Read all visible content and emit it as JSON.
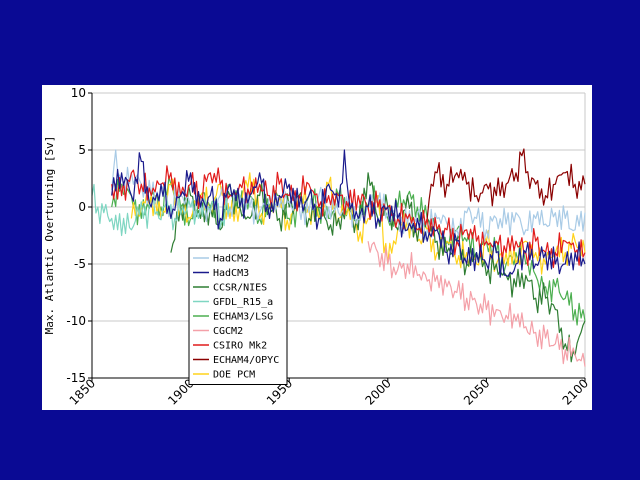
{
  "chart_data": {
    "type": "line",
    "ylabel": "Max. Atlantic Overturning [Sv]",
    "xlim": [
      1850,
      2100
    ],
    "ylim": [
      -15,
      10
    ],
    "x_ticks": [
      "1850",
      "1900",
      "1950",
      "2000",
      "2050",
      "2100"
    ],
    "y_ticks": [
      "10",
      "5",
      "0",
      "-5",
      "-10",
      "-15"
    ],
    "grid": true,
    "legend_position": "bottom-left",
    "series": [
      {
        "name": "HadCM2",
        "color": "#a9cbe6",
        "x": [
          1860,
          1862,
          1865,
          1870,
          1875,
          1880,
          1885,
          1890,
          1895,
          1900,
          1905,
          1910,
          1915,
          1920,
          1925,
          1930,
          1935,
          1940,
          1945,
          1950,
          1955,
          1960,
          1965,
          1970,
          1975,
          1980,
          1985,
          1990,
          1995,
          2000,
          2005,
          2010,
          2015,
          2020,
          2025,
          2030,
          2035,
          2040,
          2045,
          2050,
          2055,
          2060,
          2065,
          2070,
          2075,
          2080,
          2085,
          2090,
          2095,
          2100
        ],
        "values": [
          1.5,
          5,
          1,
          3,
          2,
          1,
          1.5,
          0,
          1,
          0,
          0.5,
          -0.5,
          1,
          0,
          1,
          0,
          -0.5,
          1,
          0,
          0.5,
          0,
          -0.5,
          1,
          0,
          -0.5,
          0,
          -1,
          0,
          0.5,
          -0.5,
          -1,
          -1.5,
          -0.5,
          -2,
          -1,
          -1.5,
          -2,
          -0.5,
          -1,
          -2,
          -1,
          -1.5,
          -0.5,
          -2,
          -1,
          -1.5,
          -0.5,
          -1,
          -2,
          -0.5
        ]
      },
      {
        "name": "HadCM3",
        "color": "#1a1a8c",
        "x": [
          1860,
          1865,
          1870,
          1875,
          1880,
          1885,
          1890,
          1895,
          1900,
          1905,
          1910,
          1915,
          1920,
          1925,
          1930,
          1935,
          1940,
          1945,
          1950,
          1955,
          1960,
          1965,
          1970,
          1975,
          1978,
          1980,
          1985,
          1990,
          1995,
          2000,
          2005,
          2010,
          2015,
          2020,
          2025,
          2030,
          2035,
          2040,
          2045,
          2050,
          2055,
          2060,
          2065,
          2070,
          2075,
          2080,
          2085,
          2090,
          2095,
          2100
        ],
        "values": [
          1,
          3,
          1,
          4,
          0,
          2,
          -1,
          1,
          3,
          0,
          1,
          -1,
          2,
          0,
          1,
          3,
          -1,
          1,
          2,
          0,
          1,
          -1,
          2,
          0,
          5,
          1,
          -1,
          0,
          -1,
          0,
          -1,
          -2,
          -1,
          -3,
          -2,
          -4,
          -3,
          -5,
          -4,
          -5,
          -4,
          -6,
          -5,
          -4,
          -5,
          -4,
          -5,
          -5,
          -4,
          -5
        ]
      },
      {
        "name": "CCSR/NIES",
        "color": "#2e7d32",
        "x": [
          1890,
          1895,
          1900,
          1905,
          1910,
          1915,
          1920,
          1925,
          1930,
          1935,
          1940,
          1945,
          1950,
          1955,
          1960,
          1965,
          1970,
          1975,
          1980,
          1985,
          1990,
          1995,
          2000,
          2005,
          2010,
          2015,
          2020,
          2025,
          2030,
          2035,
          2040,
          2045,
          2050,
          2055,
          2060,
          2065,
          2070,
          2075,
          2080,
          2085,
          2090,
          2095,
          2100
        ],
        "values": [
          -4,
          0,
          1,
          -1,
          0,
          -2,
          1,
          0,
          -1,
          1,
          0,
          -1,
          0,
          1,
          -1,
          0,
          -2,
          -1,
          0,
          -2,
          3,
          -1,
          0,
          -2,
          1,
          -3,
          -1,
          -3,
          -4,
          -3,
          -5,
          -4,
          -6,
          -5,
          -6,
          -7,
          -6,
          -8,
          -8,
          -9,
          -12,
          -13,
          -10
        ]
      },
      {
        "name": "GFDL_R15_a",
        "color": "#7fd6c2",
        "x": [
          1850,
          1853,
          1856,
          1860,
          1863,
          1866,
          1870,
          1873,
          1876,
          1880,
          1884,
          1888,
          1892,
          1896,
          1900,
          1904,
          1908,
          1912,
          1916,
          1920
        ],
        "values": [
          1,
          0,
          -0.5,
          -1,
          -2,
          -1,
          -2,
          0,
          -1,
          0,
          -1,
          0.5,
          -1,
          0,
          0,
          -1,
          0,
          0.5,
          -1,
          0
        ]
      },
      {
        "name": "ECHAM3/LSG",
        "color": "#4caf50",
        "x": [
          1860,
          1865,
          1870,
          1875,
          1880,
          1885,
          1890,
          1895,
          1900,
          1905,
          1910,
          1915,
          1920,
          1925,
          1930,
          1935,
          1940,
          1945,
          1950,
          1955,
          1960,
          1965,
          1970,
          1975,
          1980,
          1985,
          1990,
          1995,
          2000,
          2005,
          2010,
          2015,
          2020,
          2025,
          2030,
          2035,
          2040,
          2045,
          2050,
          2055,
          2060,
          2065,
          2070,
          2075,
          2080,
          2085,
          2090,
          2095,
          2100
        ],
        "values": [
          0,
          2,
          1,
          -1,
          1,
          0,
          2,
          0,
          -1,
          1,
          0,
          -1,
          2,
          0,
          1,
          -1,
          0,
          1,
          -1,
          0,
          1,
          0,
          -1,
          1,
          0,
          -1,
          0,
          1,
          -1,
          0,
          1,
          0,
          -1,
          -2,
          -3,
          -2,
          -3,
          -4,
          -3,
          -4,
          -5,
          -4,
          -5,
          -6,
          -7,
          -7,
          -8,
          -9,
          -10
        ]
      },
      {
        "name": "CGCM2",
        "color": "#f4a0a8",
        "x": [
          1990,
          1995,
          2000,
          2005,
          2010,
          2015,
          2020,
          2025,
          2030,
          2035,
          2040,
          2045,
          2050,
          2055,
          2060,
          2065,
          2070,
          2075,
          2080,
          2085,
          2090,
          2095,
          2100
        ],
        "values": [
          -3,
          -4,
          -5,
          -5.5,
          -5,
          -6,
          -6.5,
          -6,
          -7,
          -7.5,
          -8,
          -8.5,
          -9,
          -9,
          -9.5,
          -10,
          -10.5,
          -11,
          -11.5,
          -12,
          -12.5,
          -13,
          -14
        ]
      },
      {
        "name": "CSIRO Mk2",
        "color": "#e11b1b",
        "x": [
          1860,
          1865,
          1870,
          1875,
          1880,
          1885,
          1890,
          1895,
          1900,
          1905,
          1910,
          1915,
          1920,
          1925,
          1930,
          1935,
          1940,
          1945,
          1950,
          1955,
          1960,
          1965,
          1970,
          1975,
          1980,
          1985,
          1990,
          1995,
          2000,
          2005,
          2010,
          2015,
          2020,
          2025,
          2030,
          2035,
          2040,
          2045,
          2050,
          2055,
          2060,
          2065,
          2070,
          2075,
          2080,
          2085,
          2090,
          2095,
          2100
        ],
        "values": [
          2,
          1,
          3,
          2,
          1,
          2,
          3,
          1,
          2,
          1,
          3,
          2,
          1,
          2,
          1,
          2,
          1,
          2,
          1,
          1,
          2,
          0,
          1,
          1,
          0,
          1,
          0,
          0,
          0,
          -1,
          -1,
          -2,
          -1,
          -2,
          -2,
          -3,
          -2,
          -3,
          -3,
          -3,
          -4,
          -3,
          -4,
          -3,
          -4,
          -4,
          -3,
          -4,
          -4
        ]
      },
      {
        "name": "ECHAM4/OPYC",
        "color": "#8b0000",
        "x": [
          2020,
          2022,
          2025,
          2030,
          2035,
          2040,
          2045,
          2050,
          2055,
          2060,
          2065,
          2068,
          2070,
          2075,
          2080,
          2085,
          2090,
          2095,
          2100
        ],
        "values": [
          -1,
          2,
          3,
          2,
          3,
          2,
          1,
          2,
          1,
          2,
          3,
          4.5,
          3,
          2,
          1,
          2,
          3,
          2,
          2
        ]
      },
      {
        "name": "DOE PCM",
        "color": "#ffd21a",
        "x": [
          1870,
          1875,
          1880,
          1885,
          1890,
          1895,
          1900,
          1905,
          1910,
          1915,
          1920,
          1925,
          1930,
          1935,
          1940,
          1945,
          1950,
          1955,
          1960,
          1965,
          1970,
          1975,
          1980,
          1985,
          1990,
          1995,
          2000,
          2005,
          2010,
          2015,
          2020,
          2025,
          2030,
          2035,
          2040,
          2045,
          2050,
          2055,
          2060,
          2065,
          2070,
          2075,
          2080,
          2085,
          2090,
          2095,
          2100
        ],
        "values": [
          -1,
          0,
          1,
          -1,
          2,
          0,
          -1,
          1,
          0,
          2,
          -1,
          0,
          3,
          -1,
          0,
          1,
          -2,
          1,
          0,
          -1,
          2,
          -1,
          0,
          -3,
          -1,
          1,
          -5,
          -2,
          -1,
          -3,
          -2,
          -4,
          -3,
          -5,
          -4,
          -5,
          -3,
          -5,
          -4,
          -5,
          -3,
          -4,
          -5,
          -4,
          -4,
          -3,
          -4
        ]
      }
    ]
  }
}
